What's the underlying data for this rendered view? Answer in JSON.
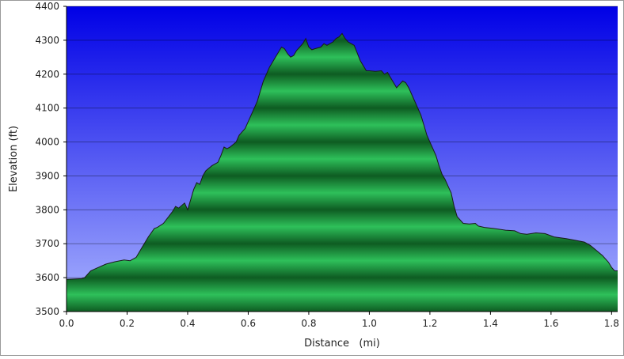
{
  "chart_data": {
    "type": "area",
    "title": "",
    "xlabel": "Distance   (mi)",
    "ylabel": "Elevation (ft)",
    "xlim": [
      0,
      1.82
    ],
    "ylim": [
      3500,
      4400
    ],
    "x_ticks": [
      "0.0",
      "0.2",
      "0.4",
      "0.6",
      "0.8",
      "1.0",
      "1.2",
      "1.4",
      "1.6",
      "1.8"
    ],
    "y_ticks": [
      "3500",
      "3600",
      "3700",
      "3800",
      "3900",
      "4000",
      "4100",
      "4200",
      "4300",
      "4400"
    ],
    "grid": "horizontal",
    "legend": "none",
    "colors": {
      "sky_top": "#0000e6",
      "sky_bottom": "#aab4ff",
      "fill_light": "#2ec05a",
      "fill_dark": "#0e5c22",
      "outline": "#1a1a1a"
    },
    "series": [
      {
        "x": [
          0.0,
          0.05,
          0.06,
          0.08,
          0.1,
          0.13,
          0.16,
          0.19,
          0.21,
          0.23,
          0.25,
          0.27,
          0.29,
          0.3,
          0.32,
          0.35,
          0.36,
          0.37,
          0.39,
          0.4,
          0.41,
          0.42,
          0.43,
          0.44,
          0.45,
          0.46,
          0.48,
          0.5,
          0.51,
          0.52,
          0.53,
          0.54,
          0.56,
          0.57,
          0.59,
          0.61,
          0.63,
          0.65,
          0.67,
          0.69,
          0.7,
          0.71,
          0.72,
          0.73,
          0.74,
          0.75,
          0.76,
          0.77,
          0.78,
          0.79,
          0.8,
          0.81,
          0.82,
          0.84,
          0.85,
          0.86,
          0.88,
          0.89,
          0.9,
          0.91,
          0.92,
          0.93,
          0.94,
          0.95,
          0.97,
          0.99,
          1.0,
          1.02,
          1.04,
          1.05,
          1.06,
          1.07,
          1.08,
          1.09,
          1.1,
          1.11,
          1.12,
          1.13,
          1.15,
          1.16,
          1.17,
          1.18,
          1.19,
          1.2,
          1.21,
          1.22,
          1.23,
          1.24,
          1.25,
          1.26,
          1.27,
          1.28,
          1.29,
          1.31,
          1.33,
          1.35,
          1.36,
          1.38,
          1.41,
          1.45,
          1.48,
          1.5,
          1.52,
          1.55,
          1.58,
          1.61,
          1.65,
          1.68,
          1.71,
          1.73,
          1.75,
          1.77,
          1.79,
          1.8,
          1.81,
          1.82
        ],
        "y": [
          3595,
          3597,
          3600,
          3620,
          3628,
          3640,
          3647,
          3652,
          3650,
          3660,
          3690,
          3720,
          3745,
          3748,
          3760,
          3795,
          3810,
          3805,
          3820,
          3800,
          3830,
          3860,
          3880,
          3875,
          3900,
          3915,
          3930,
          3940,
          3960,
          3985,
          3980,
          3985,
          4000,
          4020,
          4040,
          4080,
          4120,
          4180,
          4220,
          4250,
          4265,
          4280,
          4275,
          4260,
          4250,
          4255,
          4270,
          4280,
          4290,
          4305,
          4280,
          4272,
          4275,
          4280,
          4290,
          4285,
          4295,
          4305,
          4310,
          4320,
          4305,
          4295,
          4290,
          4285,
          4240,
          4210,
          4210,
          4208,
          4210,
          4200,
          4205,
          4190,
          4175,
          4160,
          4170,
          4180,
          4175,
          4160,
          4120,
          4100,
          4080,
          4050,
          4020,
          4000,
          3980,
          3960,
          3930,
          3905,
          3890,
          3870,
          3850,
          3810,
          3780,
          3760,
          3758,
          3760,
          3752,
          3748,
          3745,
          3740,
          3738,
          3730,
          3728,
          3732,
          3730,
          3720,
          3715,
          3710,
          3705,
          3695,
          3680,
          3665,
          3645,
          3630,
          3620,
          3620
        ]
      }
    ]
  }
}
